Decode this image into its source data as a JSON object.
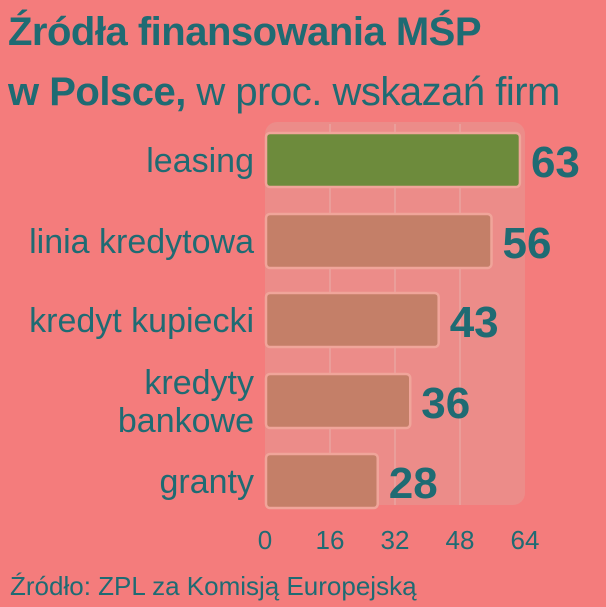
{
  "title": {
    "line1": "Źródła finansowania MŚP",
    "line2_bold": "w Polsce,",
    "line2_light": " w proc. wskazań firm"
  },
  "source": "Źródło: ZPL za Komisją Europejską",
  "colors": {
    "background": "#f47c7c",
    "text": "#1f6b73",
    "highlight_bar": "#6d8b3c",
    "bar": "#c47f68",
    "bar_stroke": "#f0a59a",
    "panel": "#ec8c89",
    "grid": "#e9a3a0"
  },
  "chart_data": {
    "type": "bar",
    "orientation": "horizontal",
    "categories": [
      [
        "leasing"
      ],
      [
        "linia kredytowa"
      ],
      [
        "kredyt kupiecki"
      ],
      [
        "kredyty",
        "bankowe"
      ],
      [
        "granty"
      ]
    ],
    "values": [
      63,
      56,
      43,
      36,
      28
    ],
    "value_labels": [
      "63",
      "56",
      "43",
      "36",
      "28"
    ],
    "highlight_index": 0,
    "xlim": [
      0,
      64
    ],
    "xticks": [
      0,
      16,
      32,
      48,
      64
    ],
    "grid": true
  }
}
